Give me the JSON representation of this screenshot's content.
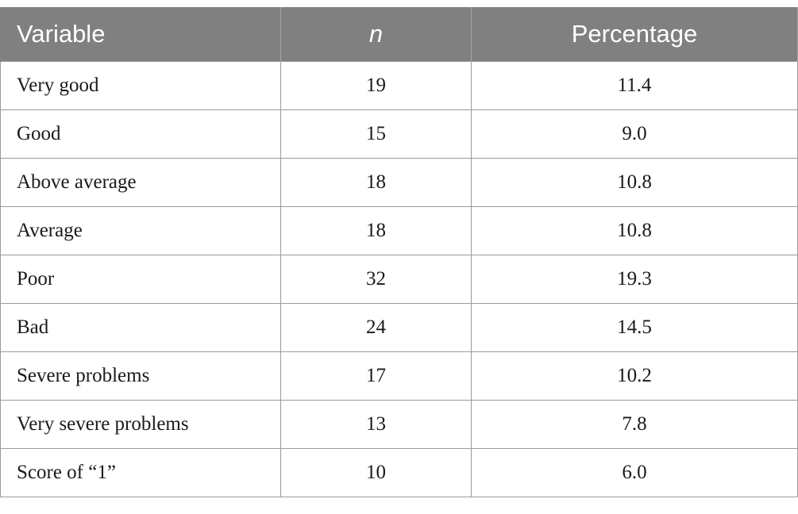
{
  "table": {
    "headers": [
      "Variable",
      "n",
      "Percentage"
    ],
    "rows": [
      {
        "variable": "Very good",
        "n": "19",
        "percentage": "11.4"
      },
      {
        "variable": "Good",
        "n": "15",
        "percentage": "9.0"
      },
      {
        "variable": "Above average",
        "n": "18",
        "percentage": "10.8"
      },
      {
        "variable": "Average",
        "n": "18",
        "percentage": "10.8"
      },
      {
        "variable": "Poor",
        "n": "32",
        "percentage": "19.3"
      },
      {
        "variable": "Bad",
        "n": "24",
        "percentage": "14.5"
      },
      {
        "variable": "Severe problems",
        "n": "17",
        "percentage": "10.2"
      },
      {
        "variable": "Very severe problems",
        "n": "13",
        "percentage": "7.8"
      },
      {
        "variable": "Score of “1”",
        "n": "10",
        "percentage": "6.0"
      }
    ]
  }
}
